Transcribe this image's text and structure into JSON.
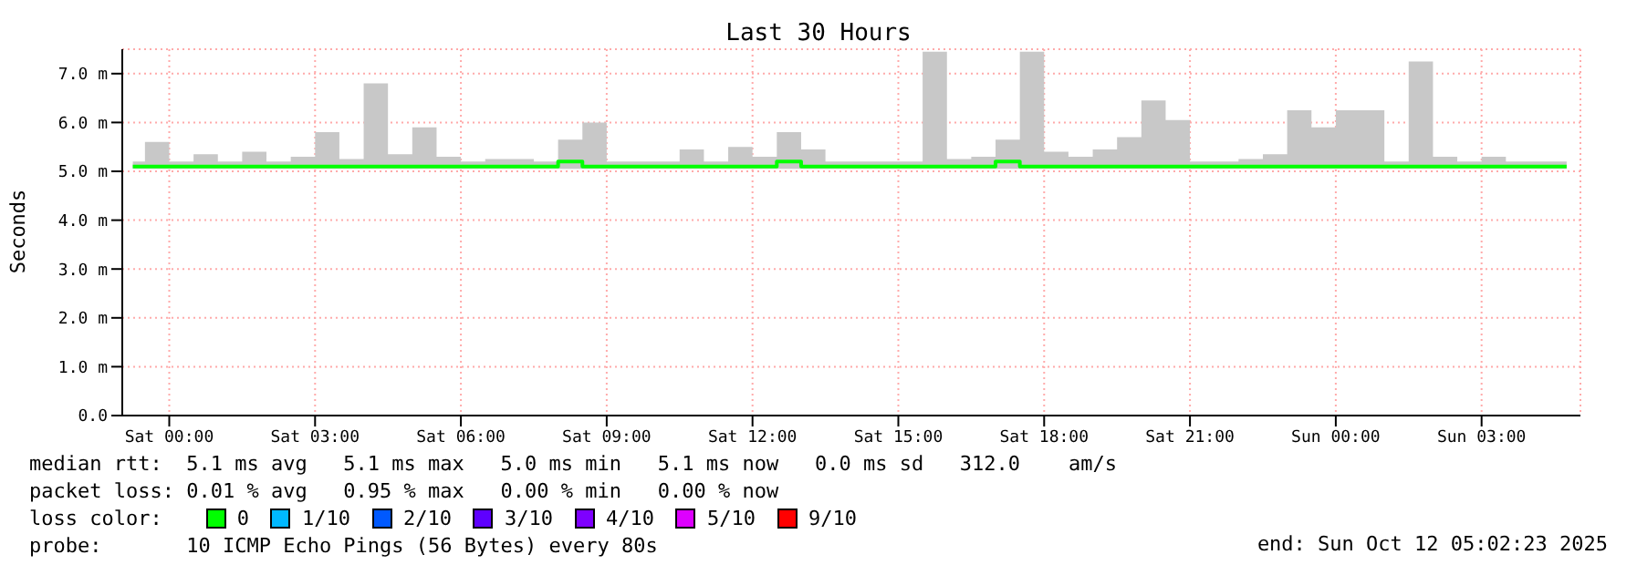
{
  "chart_data": {
    "type": "line",
    "title": "Last 30 Hours",
    "ylabel": "Seconds",
    "x": [
      "2025-10-10T23:15",
      "2025-10-10T23:45",
      "2025-10-11T00:15",
      "2025-10-11T00:45",
      "2025-10-11T01:15",
      "2025-10-11T01:45",
      "2025-10-11T02:15",
      "2025-10-11T02:45",
      "2025-10-11T03:15",
      "2025-10-11T03:45",
      "2025-10-11T04:15",
      "2025-10-11T04:45",
      "2025-10-11T05:15",
      "2025-10-11T05:45",
      "2025-10-11T06:15",
      "2025-10-11T06:45",
      "2025-10-11T07:15",
      "2025-10-11T07:45",
      "2025-10-11T08:15",
      "2025-10-11T08:45",
      "2025-10-11T09:15",
      "2025-10-11T09:45",
      "2025-10-11T10:15",
      "2025-10-11T10:45",
      "2025-10-11T11:15",
      "2025-10-11T11:45",
      "2025-10-11T12:15",
      "2025-10-11T12:45",
      "2025-10-11T13:15",
      "2025-10-11T13:45",
      "2025-10-11T14:15",
      "2025-10-11T14:45",
      "2025-10-11T15:15",
      "2025-10-11T15:45",
      "2025-10-11T16:15",
      "2025-10-11T16:45",
      "2025-10-11T17:15",
      "2025-10-11T17:45",
      "2025-10-11T18:15",
      "2025-10-11T18:45",
      "2025-10-11T19:15",
      "2025-10-11T19:45",
      "2025-10-11T20:15",
      "2025-10-11T20:45",
      "2025-10-11T21:15",
      "2025-10-11T21:45",
      "2025-10-11T22:15",
      "2025-10-11T22:45",
      "2025-10-11T23:15",
      "2025-10-11T23:45",
      "2025-10-12T00:15",
      "2025-10-12T00:45",
      "2025-10-12T01:15",
      "2025-10-12T01:45",
      "2025-10-12T02:15",
      "2025-10-12T02:45",
      "2025-10-12T03:15",
      "2025-10-12T03:45",
      "2025-10-12T04:15",
      "2025-10-12T04:45"
    ],
    "series": [
      {
        "color": "#00ff00",
        "lower": [
          5.05,
          5.05,
          5.05,
          5.05,
          5.05,
          5.05,
          5.05,
          5.05,
          5.05,
          5.05,
          5.05,
          5.05,
          5.05,
          5.05,
          5.05,
          5.05,
          5.05,
          5.05,
          5.05,
          5.05,
          5.05,
          5.05,
          5.05,
          5.05,
          5.05,
          5.05,
          5.05,
          5.05,
          5.05,
          5.05,
          5.05,
          5.05,
          5.05,
          5.05,
          5.05,
          5.05,
          5.05,
          5.05,
          5.05,
          5.05,
          5.05,
          5.05,
          5.05,
          5.05,
          5.05,
          5.05,
          5.05,
          5.05,
          5.05,
          5.05,
          5.05,
          5.05,
          5.05,
          5.05,
          5.05,
          5.05,
          5.05,
          5.05,
          5.05,
          5.05
        ],
        "upper": [
          5.2,
          5.6,
          5.2,
          5.35,
          5.2,
          5.4,
          5.2,
          5.3,
          5.8,
          5.25,
          6.8,
          5.35,
          5.9,
          5.3,
          5.2,
          5.25,
          5.25,
          5.2,
          5.65,
          6.0,
          5.2,
          5.2,
          5.2,
          5.45,
          5.2,
          5.5,
          5.3,
          5.8,
          5.45,
          5.2,
          5.2,
          5.2,
          5.2,
          7.45,
          5.25,
          5.3,
          5.65,
          7.45,
          5.4,
          5.3,
          5.45,
          5.7,
          6.45,
          6.05,
          5.2,
          5.2,
          5.25,
          5.35,
          6.25,
          5.9,
          6.25,
          6.25,
          5.2,
          7.25,
          5.3,
          5.2,
          5.3,
          5.2,
          5.2,
          5.2
        ],
        "values": [
          5.1,
          5.1,
          5.1,
          5.1,
          5.1,
          5.1,
          5.1,
          5.1,
          5.1,
          5.1,
          5.1,
          5.1,
          5.1,
          5.1,
          5.1,
          5.1,
          5.1,
          5.1,
          5.2,
          5.1,
          5.1,
          5.1,
          5.1,
          5.1,
          5.1,
          5.1,
          5.1,
          5.2,
          5.1,
          5.1,
          5.1,
          5.1,
          5.1,
          5.1,
          5.1,
          5.1,
          5.2,
          5.1,
          5.1,
          5.1,
          5.1,
          5.1,
          5.1,
          5.1,
          5.1,
          5.1,
          5.1,
          5.1,
          5.1,
          5.1,
          5.1,
          5.1,
          5.1,
          5.1,
          5.1,
          5.1,
          5.1,
          5.1,
          5.1,
          5.1
        ]
      }
    ],
    "xlim": [
      "2025-10-10T23:02",
      "2025-10-12T05:02"
    ],
    "xticks": [
      {
        "value": "2025-10-11T00:00",
        "label": "Sat 00:00"
      },
      {
        "value": "2025-10-11T03:00",
        "label": "Sat 03:00"
      },
      {
        "value": "2025-10-11T06:00",
        "label": "Sat 06:00"
      },
      {
        "value": "2025-10-11T09:00",
        "label": "Sat 09:00"
      },
      {
        "value": "2025-10-11T12:00",
        "label": "Sat 12:00"
      },
      {
        "value": "2025-10-11T15:00",
        "label": "Sat 15:00"
      },
      {
        "value": "2025-10-11T18:00",
        "label": "Sat 18:00"
      },
      {
        "value": "2025-10-11T21:00",
        "label": "Sat 21:00"
      },
      {
        "value": "2025-10-12T00:00",
        "label": "Sun 00:00"
      },
      {
        "value": "2025-10-12T03:00",
        "label": "Sun 03:00"
      }
    ],
    "ylim": [
      0,
      7.5
    ],
    "yticks": [
      {
        "value": 0,
        "label": "0.0"
      },
      {
        "value": 1,
        "label": "1.0 m"
      },
      {
        "value": 2,
        "label": "2.0 m"
      },
      {
        "value": 3,
        "label": "3.0 m"
      },
      {
        "value": 4,
        "label": "4.0 m"
      },
      {
        "value": 5,
        "label": "5.0 m"
      },
      {
        "value": 6,
        "label": "6.0 m"
      },
      {
        "value": 7,
        "label": "7.0 m"
      }
    ],
    "grid": true,
    "annotations": [
      "median rtt:  5.1 ms avg   5.1 ms max   5.0 ms min   5.1 ms now   0.0 ms sd   312.0    am/s",
      "packet loss: 0.01 % avg   0.95 % max   0.00 % min   0.00 % now",
      "loss color:",
      "0",
      "1/10",
      "2/10",
      "3/10",
      "4/10",
      "5/10",
      "9/10",
      "probe:       10 ICMP Echo Pings (56 Bytes) every 80s",
      "end: Sun Oct 12 05:02:23 2025"
    ]
  }
}
